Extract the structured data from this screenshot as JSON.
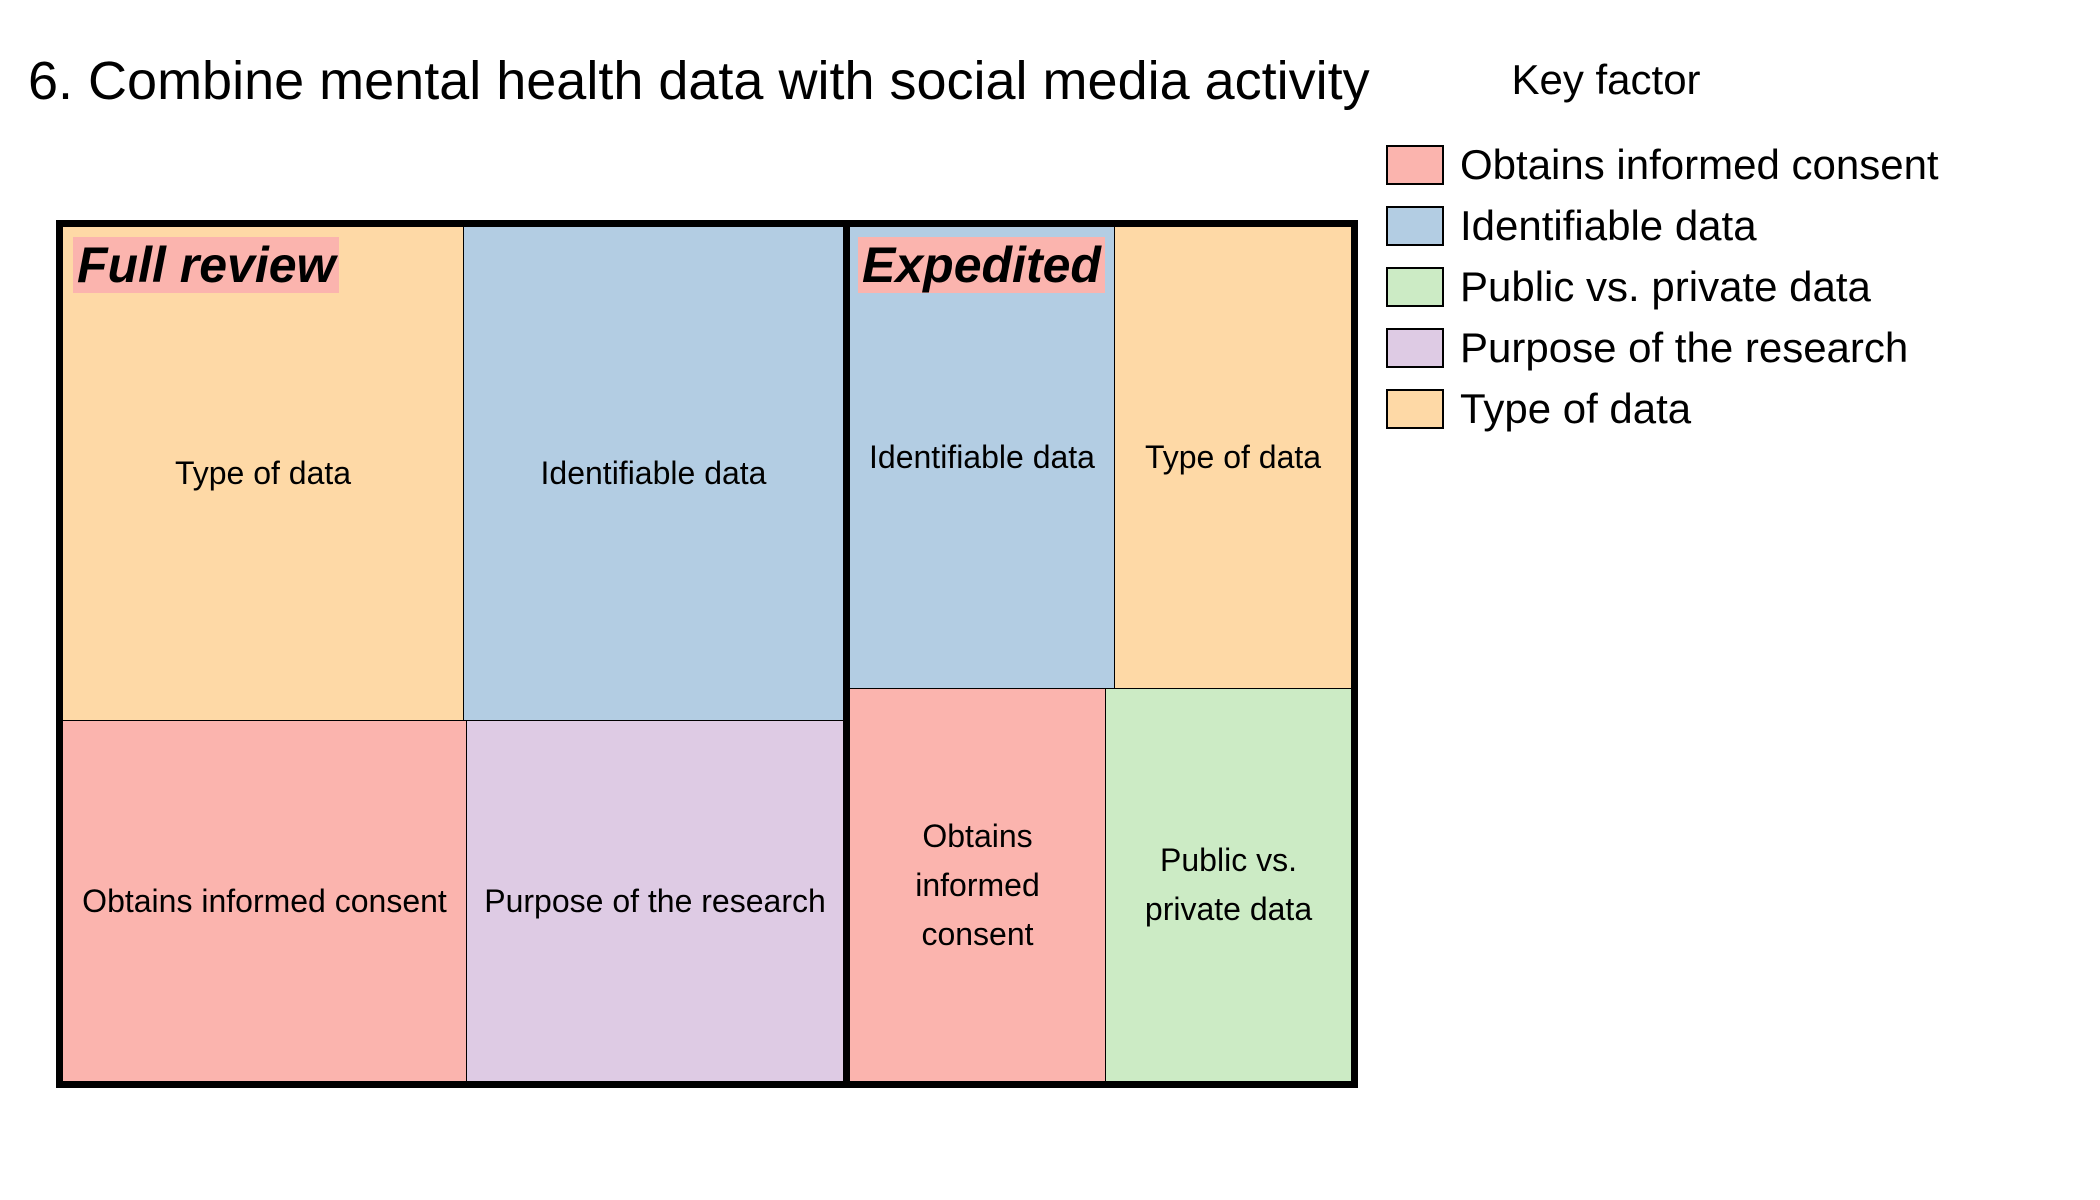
{
  "chart_data": {
    "type": "treemap",
    "title": "6. Combine mental health data with social media activity",
    "legend": {
      "title": "Key factor",
      "placement": "right",
      "items": [
        {
          "label": "Obtains informed consent",
          "color": "#fbb4ae"
        },
        {
          "label": "Identifiable data",
          "color": "#b3cde3"
        },
        {
          "label": "Public vs. private data",
          "color": "#ccebc5"
        },
        {
          "label": "Purpose of the research",
          "color": "#decbe4"
        },
        {
          "label": "Type of data",
          "color": "#fed9a6"
        }
      ]
    },
    "groups": [
      {
        "label": "Full review",
        "value": 0.6,
        "label_bg": "#fbb4ae",
        "cells": [
          {
            "label": "Type of data",
            "color": "#fed9a6",
            "value": 0.17
          },
          {
            "label": "Identifiable data",
            "color": "#b3cde3",
            "value": 0.16
          },
          {
            "label": "Obtains informed consent",
            "color": "#fbb4ae",
            "value": 0.14
          },
          {
            "label": "Purpose of the research",
            "color": "#decbe4",
            "value": 0.13
          }
        ]
      },
      {
        "label": "Expedited",
        "value": 0.4,
        "label_bg": "#fbb4ae",
        "cells": [
          {
            "label": "Identifiable data",
            "color": "#b3cde3",
            "value": 0.11
          },
          {
            "label": "Type of data",
            "color": "#fed9a6",
            "value": 0.1
          },
          {
            "label": "Obtains informed consent",
            "color": "#fbb4ae",
            "value": 0.09
          },
          {
            "label": "Public vs. private data",
            "color": "#ccebc5",
            "value": 0.09
          }
        ]
      }
    ]
  }
}
